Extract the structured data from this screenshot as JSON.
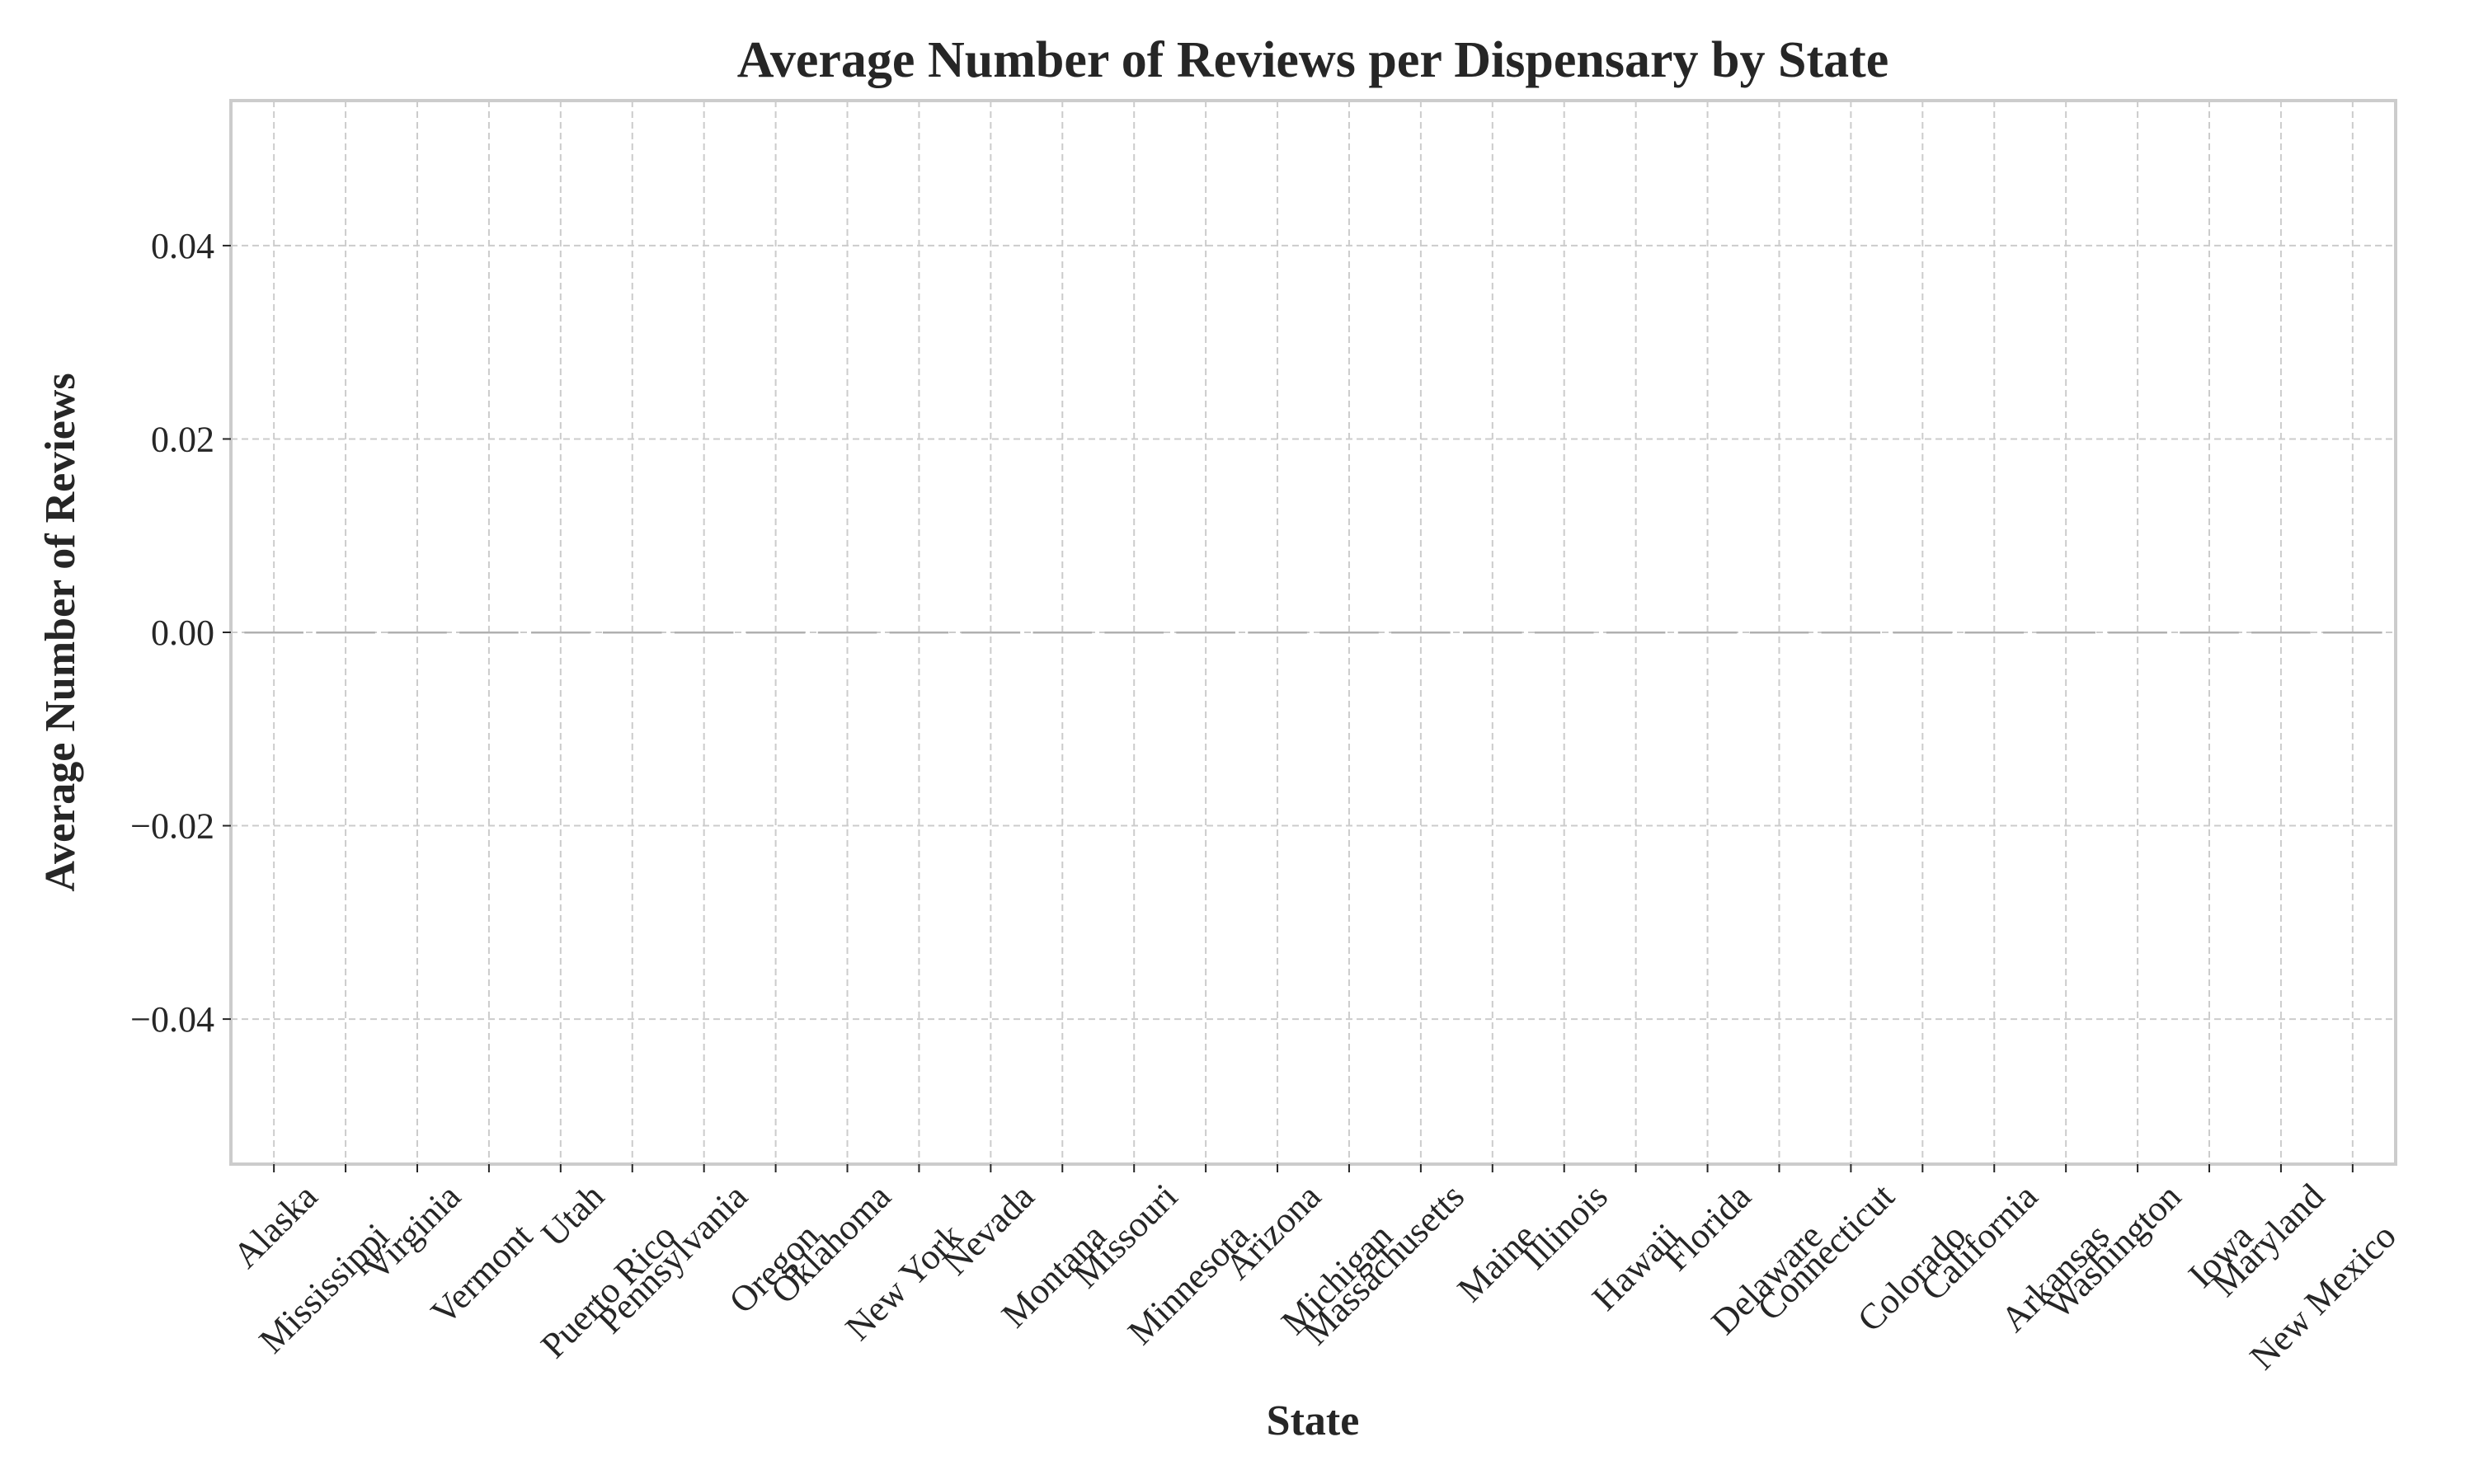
{
  "chart_data": {
    "type": "bar",
    "title": "Average Number of Reviews per Dispensary by State",
    "xlabel": "State",
    "ylabel": "Average Number of Reviews",
    "categories": [
      "Alaska",
      "Mississippi",
      "Virginia",
      "Vermont",
      "Utah",
      "Puerto Rico",
      "Pennsylvania",
      "Oregon",
      "Oklahoma",
      "New York",
      "Nevada",
      "Montana",
      "Missouri",
      "Minnesota",
      "Arizona",
      "Michigan",
      "Massachusetts",
      "Maine",
      "Illinois",
      "Hawaii",
      "Florida",
      "Delaware",
      "Connecticut",
      "Colorado",
      "California",
      "Arkansas",
      "Washington",
      "Iowa",
      "Maryland",
      "New Mexico"
    ],
    "values": [
      0,
      0,
      0,
      0,
      0,
      0,
      0,
      0,
      0,
      0,
      0,
      0,
      0,
      0,
      0,
      0,
      0,
      0,
      0,
      0,
      0,
      0,
      0,
      0,
      0,
      0,
      0,
      0,
      0,
      0
    ],
    "ylim": [
      -0.055,
      0.055
    ],
    "yticks": [
      -0.04,
      -0.02,
      0.0,
      0.02,
      0.04
    ],
    "ytick_labels": [
      "−0.04",
      "−0.02",
      "0.00",
      "0.02",
      "0.04"
    ],
    "grid": true,
    "legend": "none"
  }
}
